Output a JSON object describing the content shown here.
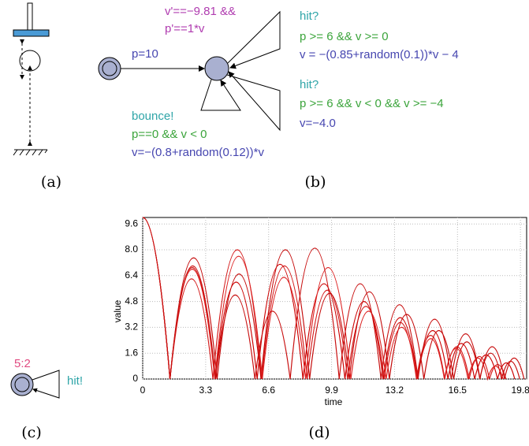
{
  "panel_a": {
    "caption": "(a)"
  },
  "panel_b": {
    "caption": "(b)",
    "initial": "p=10",
    "invariant": [
      "v'==−9.81 &&",
      "p'==1*v"
    ],
    "edges": [
      {
        "sync": "hit?",
        "guard": "p >= 6 && v >= 0",
        "update": "v = −(0.85+random(0.1))*v − 4"
      },
      {
        "sync": "hit?",
        "guard": "p >= 6 && v < 0 && v >= −4",
        "update": "v=−4.0"
      },
      {
        "sync": "bounce!",
        "guard": "p==0 && v < 0",
        "update": "v=−(0.8+random(0.12))*v"
      }
    ]
  },
  "panel_c": {
    "caption": "(c)",
    "count": "5:2",
    "sync": "hit!"
  },
  "chart_data": {
    "type": "line",
    "caption": "(d)",
    "xlabel": "time",
    "ylabel": "value",
    "xlim": [
      0,
      20
    ],
    "ylim": [
      0,
      10
    ],
    "xticks": [
      0,
      3.3,
      6.6,
      9.9,
      13.2,
      16.5,
      19.8
    ],
    "yticks": [
      0,
      1.6,
      3.2,
      4.8,
      6.4,
      {
        "value": 8,
        "label": "8.0"
      },
      9.6
    ],
    "grid": true,
    "series": [
      {
        "color": "#cc0000",
        "x": [
          0,
          1.43,
          2.6,
          3.8,
          4.9,
          6.0,
          7.2,
          8.4,
          9.5,
          10.6,
          11.6,
          12.6,
          13.5,
          14.4,
          15.2,
          16.0,
          16.7,
          17.4,
          18.0,
          18.6,
          19.05,
          19.5
        ],
        "values": [
          10,
          0,
          6.9,
          0,
          6.0,
          0,
          7.1,
          0,
          5.9,
          0,
          4.8,
          0,
          3.8,
          0,
          3.0,
          0,
          2.2,
          0,
          1.5,
          0,
          1.0,
          0
        ]
      },
      {
        "color": "#d41a1a",
        "x": [
          0,
          1.43,
          2.56,
          3.68,
          4.96,
          6.23,
          7.43,
          8.62,
          9.68,
          10.74,
          11.7,
          12.66,
          13.5,
          14.35,
          15.09,
          15.83,
          16.47,
          17.11,
          17.65,
          18.18,
          18.61,
          19.04
        ],
        "values": [
          10,
          0,
          6.2,
          0,
          8.0,
          0,
          7.0,
          0,
          5.5,
          0,
          4.5,
          0,
          3.5,
          0,
          2.7,
          0,
          2.0,
          0,
          1.4,
          0,
          0.9,
          0
        ]
      },
      {
        "color": "#c40808",
        "x": [
          0,
          1.43,
          2.67,
          3.9,
          5.05,
          6.2,
          7.48,
          8.75,
          9.79,
          10.83,
          11.88,
          12.93,
          13.84,
          14.74,
          15.52,
          16.3,
          16.99,
          17.67,
          18.24,
          18.81,
          19.29,
          19.76
        ],
        "values": [
          10,
          0,
          7.5,
          0,
          6.5,
          0,
          8.0,
          0,
          5.3,
          0,
          5.4,
          0,
          4.0,
          0,
          3.0,
          0,
          2.3,
          0,
          1.6,
          0,
          1.1,
          0
        ]
      },
      {
        "color": "#dd2222",
        "x": [
          0,
          1.43,
          2.6,
          3.78,
          5.03,
          6.27,
          7.4,
          8.54,
          9.72,
          10.91,
          11.84,
          12.76,
          13.57,
          14.38,
          15.1,
          15.81,
          16.43,
          17.05,
          17.57,
          18.08,
          18.49,
          18.89
        ],
        "values": [
          10,
          0,
          6.8,
          0,
          7.6,
          0,
          6.3,
          0,
          6.9,
          0,
          4.2,
          0,
          3.2,
          0,
          2.5,
          0,
          1.9,
          0,
          1.3,
          0,
          0.8,
          0
        ]
      },
      {
        "color": "#c80f0f",
        "x": [
          0,
          1.43,
          2.62,
          3.82,
          4.85,
          5.88,
          6.8,
          7.73,
          9.02,
          10.3,
          11.4,
          12.49,
          13.46,
          14.43,
          15.3,
          16.17,
          16.93,
          17.68,
          18.32,
          18.96,
          19.47,
          19.99
        ],
        "values": [
          10,
          0,
          7.0,
          0,
          5.2,
          0,
          4.2,
          0,
          8.1,
          0,
          5.9,
          0,
          4.6,
          0,
          3.7,
          0,
          2.8,
          0,
          2.0,
          0,
          1.3,
          0
        ]
      }
    ]
  }
}
